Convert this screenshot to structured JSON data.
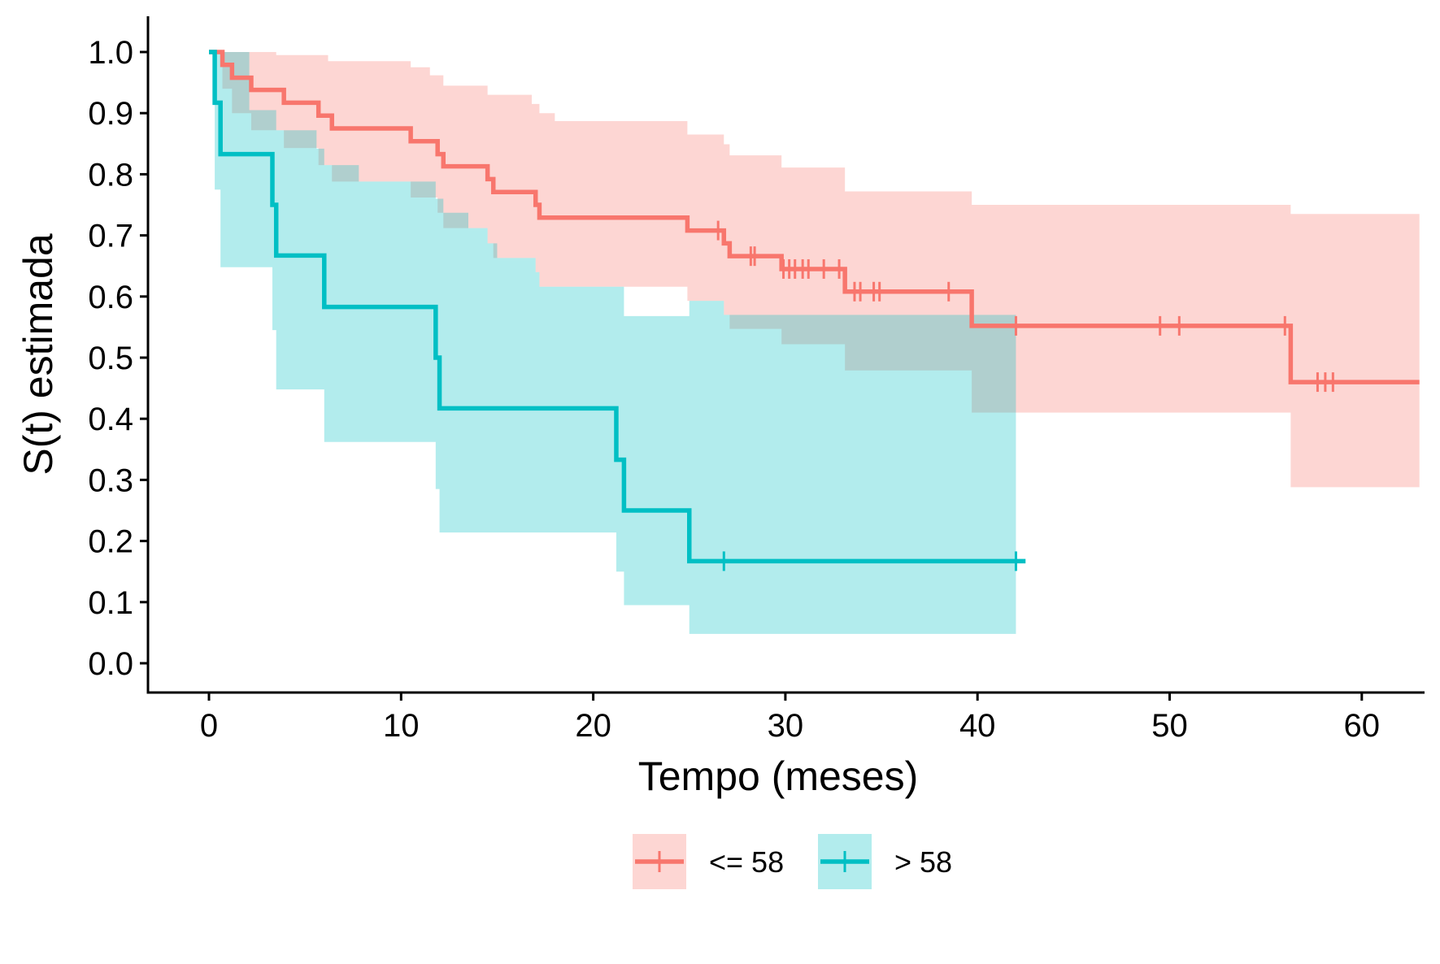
{
  "chart_data": {
    "type": "line",
    "subtype": "kaplan-meier step curves with confidence bands",
    "xlabel": "Tempo (meses)",
    "ylabel": "S(t) estimada",
    "xlim": [
      -3,
      63
    ],
    "ylim": [
      -0.05,
      1.03
    ],
    "xticks": [
      0,
      10,
      20,
      30,
      40,
      50,
      60
    ],
    "xtick_labels": [
      "0",
      "10",
      "20",
      "30",
      "40",
      "50",
      "60"
    ],
    "yticks": [
      0.0,
      0.1,
      0.2,
      0.3,
      0.4,
      0.5,
      0.6,
      0.7,
      0.8,
      0.9,
      1.0
    ],
    "ytick_labels": [
      "0.0",
      "0.1",
      "0.2",
      "0.3",
      "0.4",
      "0.5",
      "0.6",
      "0.7",
      "0.8",
      "0.9",
      "1.0"
    ],
    "grid": false,
    "legend_position": "bottom",
    "series": [
      {
        "name": "<= 58",
        "color": "#F8766D",
        "band_color": "#F8766D",
        "x_end": 63,
        "steps": [
          [
            0,
            1.0
          ],
          [
            0.7,
            0.979
          ],
          [
            1.2,
            0.958
          ],
          [
            2.2,
            0.938
          ],
          [
            3.9,
            0.917
          ],
          [
            5.7,
            0.896
          ],
          [
            6.4,
            0.875
          ],
          [
            10.5,
            0.854
          ],
          [
            11.9,
            0.833
          ],
          [
            12.2,
            0.813
          ],
          [
            14.5,
            0.792
          ],
          [
            14.8,
            0.771
          ],
          [
            17.0,
            0.75
          ],
          [
            17.2,
            0.729
          ],
          [
            24.9,
            0.708
          ],
          [
            26.8,
            0.687
          ],
          [
            27.1,
            0.666
          ],
          [
            29.8,
            0.645
          ],
          [
            33.1,
            0.608
          ],
          [
            39.7,
            0.552
          ],
          [
            56.3,
            0.46
          ]
        ],
        "lower": [
          [
            0,
            1.0
          ],
          [
            0.7,
            0.94
          ],
          [
            1.2,
            0.9
          ],
          [
            2.2,
            0.872
          ],
          [
            3.9,
            0.843
          ],
          [
            5.7,
            0.815
          ],
          [
            6.4,
            0.788
          ],
          [
            10.5,
            0.762
          ],
          [
            11.9,
            0.737
          ],
          [
            12.2,
            0.712
          ],
          [
            14.5,
            0.687
          ],
          [
            14.8,
            0.663
          ],
          [
            17.0,
            0.64
          ],
          [
            17.2,
            0.616
          ],
          [
            24.9,
            0.593
          ],
          [
            26.8,
            0.57
          ],
          [
            27.1,
            0.547
          ],
          [
            29.8,
            0.522
          ],
          [
            33.1,
            0.479
          ],
          [
            39.7,
            0.41
          ],
          [
            56.3,
            0.288
          ]
        ],
        "upper": [
          [
            0,
            1.0
          ],
          [
            0.7,
            1.0
          ],
          [
            3.5,
            0.995
          ],
          [
            6.2,
            0.985
          ],
          [
            10.5,
            0.975
          ],
          [
            11.5,
            0.962
          ],
          [
            12.2,
            0.945
          ],
          [
            14.5,
            0.93
          ],
          [
            16.8,
            0.915
          ],
          [
            17.2,
            0.9
          ],
          [
            18.0,
            0.887
          ],
          [
            24.9,
            0.865
          ],
          [
            26.8,
            0.849
          ],
          [
            27.1,
            0.831
          ],
          [
            29.8,
            0.811
          ],
          [
            33.1,
            0.772
          ],
          [
            39.7,
            0.75
          ],
          [
            56.3,
            0.735
          ]
        ],
        "censor_times": [
          26.5,
          28.2,
          28.4,
          29.9,
          30.2,
          30.5,
          30.9,
          31.2,
          32.0,
          32.8,
          33.6,
          33.9,
          34.6,
          34.9,
          38.5,
          42.0,
          49.5,
          50.5,
          56.0,
          57.7,
          58.1,
          58.5
        ]
      },
      {
        "name": "> 58",
        "color": "#00BFC4",
        "band_color": "#00BFC4",
        "x_end": 42.5,
        "steps": [
          [
            0,
            1.0
          ],
          [
            0.3,
            0.917
          ],
          [
            0.6,
            0.833
          ],
          [
            3.3,
            0.75
          ],
          [
            3.5,
            0.667
          ],
          [
            6.0,
            0.583
          ],
          [
            11.8,
            0.5
          ],
          [
            12.0,
            0.417
          ],
          [
            21.2,
            0.333
          ],
          [
            21.6,
            0.25
          ],
          [
            25.0,
            0.167
          ]
        ],
        "lower": [
          [
            0,
            1.0
          ],
          [
            0.3,
            0.775
          ],
          [
            0.6,
            0.648
          ],
          [
            3.3,
            0.545
          ],
          [
            3.5,
            0.448
          ],
          [
            6.0,
            0.362
          ],
          [
            11.8,
            0.285
          ],
          [
            12.0,
            0.214
          ],
          [
            21.2,
            0.15
          ],
          [
            21.6,
            0.095
          ],
          [
            25.0,
            0.048
          ]
        ],
        "upper": [
          [
            0,
            1.0
          ],
          [
            0.6,
            1.0
          ],
          [
            2.1,
            0.905
          ],
          [
            3.5,
            0.872
          ],
          [
            5.6,
            0.842
          ],
          [
            6.0,
            0.815
          ],
          [
            7.8,
            0.788
          ],
          [
            11.8,
            0.76
          ],
          [
            12.2,
            0.737
          ],
          [
            13.5,
            0.712
          ],
          [
            14.5,
            0.687
          ],
          [
            15.0,
            0.663
          ],
          [
            17.0,
            0.64
          ],
          [
            17.2,
            0.616
          ],
          [
            21.6,
            0.568
          ],
          [
            25.0,
            0.593
          ],
          [
            26.8,
            0.57
          ]
        ],
        "band_end": 42.0,
        "censor_times": [
          26.8,
          42.0
        ]
      }
    ]
  }
}
